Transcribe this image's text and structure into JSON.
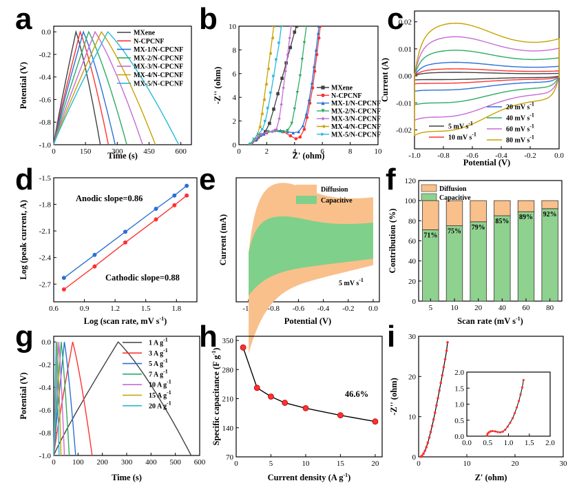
{
  "panels": [
    "a",
    "b",
    "c",
    "d",
    "e",
    "f",
    "g",
    "h",
    "i"
  ],
  "chart_data": [
    {
      "id": "a",
      "type": "line",
      "xlabel": "Time (s)",
      "ylabel": "Potential (V)",
      "xlim": [
        0,
        650
      ],
      "ylim": [
        -1.0,
        0.05
      ],
      "xticks": [
        0,
        150,
        300,
        450,
        600
      ],
      "yticks": [
        0.0,
        -0.2,
        -0.4,
        -0.6,
        -0.8,
        -1.0
      ],
      "series": [
        {
          "name": "MXene",
          "color": "#404040",
          "peak_t": 105,
          "end_t": 220
        },
        {
          "name": "N-CPCNF",
          "color": "#ff3030",
          "peak_t": 125,
          "end_t": 258
        },
        {
          "name": "MX-1/N-CPCNF",
          "color": "#2a6fd6",
          "peak_t": 140,
          "end_t": 290
        },
        {
          "name": "MX-2/N-CPCNF",
          "color": "#2cab62",
          "peak_t": 165,
          "end_t": 345
        },
        {
          "name": "MX-3/N-CPCNF",
          "color": "#c66ad6",
          "peak_t": 195,
          "end_t": 420
        },
        {
          "name": "MX-4/N-CPCNF",
          "color": "#c8a000",
          "peak_t": 225,
          "end_t": 480
        },
        {
          "name": "MX-5/N-CPCNF",
          "color": "#29b8d8",
          "peak_t": 255,
          "end_t": 590
        }
      ]
    },
    {
      "id": "b",
      "type": "scatter",
      "xlabel": "Z' (ohm)",
      "ylabel": "-Z'' (ohm)",
      "xlim": [
        0,
        10
      ],
      "ylim": [
        0,
        10
      ],
      "xticks": [
        0,
        2,
        4,
        6,
        8,
        10
      ],
      "yticks": [
        0,
        2,
        4,
        6,
        8,
        10
      ],
      "series": [
        {
          "name": "MXene",
          "color": "#404040",
          "marker": "square",
          "points": [
            [
              0.9,
              0.05
            ],
            [
              1.2,
              0.4
            ],
            [
              1.55,
              0.8
            ],
            [
              1.9,
              1.1
            ],
            [
              2.2,
              1.8
            ],
            [
              2.5,
              3.0
            ],
            [
              2.8,
              4.3
            ],
            [
              3.1,
              5.6
            ],
            [
              3.4,
              6.9
            ],
            [
              3.7,
              8.2
            ],
            [
              4.0,
              9.5
            ],
            [
              4.15,
              10
            ]
          ]
        },
        {
          "name": "N-CPCNF",
          "color": "#ff3030",
          "marker": "circle",
          "points": [
            [
              0.9,
              0.05
            ],
            [
              1.4,
              0.6
            ],
            [
              2.0,
              1.0
            ],
            [
              2.6,
              1.2
            ],
            [
              3.2,
              1.1
            ],
            [
              3.7,
              0.75
            ],
            [
              4.1,
              0.5
            ],
            [
              4.4,
              0.65
            ],
            [
              4.7,
              1.3
            ],
            [
              4.9,
              2.3
            ],
            [
              5.1,
              3.5
            ],
            [
              5.3,
              4.8
            ],
            [
              5.45,
              6.2
            ],
            [
              5.6,
              7.6
            ],
            [
              5.75,
              9.0
            ],
            [
              5.85,
              10
            ]
          ]
        },
        {
          "name": "MX-1/N-CPCNF",
          "color": "#2a6fd6",
          "marker": "triangle-up",
          "points": [
            [
              0.9,
              0.05
            ],
            [
              1.3,
              0.5
            ],
            [
              1.8,
              0.9
            ],
            [
              2.4,
              1.15
            ],
            [
              3.0,
              1.2
            ],
            [
              3.5,
              1.1
            ],
            [
              3.9,
              1.0
            ],
            [
              4.3,
              1.1
            ],
            [
              4.6,
              1.6
            ],
            [
              4.85,
              2.6
            ],
            [
              5.05,
              3.8
            ],
            [
              5.25,
              5.2
            ],
            [
              5.4,
              6.6
            ],
            [
              5.55,
              8.0
            ],
            [
              5.7,
              9.4
            ],
            [
              5.75,
              10
            ]
          ]
        },
        {
          "name": "MX-2/N-CPCNF",
          "color": "#2cab62",
          "marker": "triangle-down",
          "points": [
            [
              0.85,
              0.05
            ],
            [
              1.2,
              0.45
            ],
            [
              1.6,
              0.85
            ],
            [
              2.1,
              1.1
            ],
            [
              2.6,
              1.15
            ],
            [
              3.1,
              1.05
            ],
            [
              3.5,
              1.2
            ],
            [
              3.8,
              1.8
            ],
            [
              4.0,
              3.0
            ],
            [
              4.2,
              4.4
            ],
            [
              4.4,
              5.8
            ],
            [
              4.55,
              7.2
            ],
            [
              4.7,
              8.6
            ],
            [
              4.85,
              10
            ]
          ]
        },
        {
          "name": "MX-3/N-CPCNF",
          "color": "#c66ad6",
          "marker": "diamond",
          "points": [
            [
              0.85,
              0.05
            ],
            [
              1.2,
              0.5
            ],
            [
              1.6,
              0.9
            ],
            [
              2.0,
              1.05
            ],
            [
              2.4,
              1.1
            ],
            [
              2.7,
              1.3
            ],
            [
              2.9,
              2.2
            ],
            [
              3.05,
              3.4
            ],
            [
              3.2,
              4.8
            ],
            [
              3.35,
              6.2
            ],
            [
              3.5,
              7.6
            ],
            [
              3.65,
              9.0
            ],
            [
              3.75,
              10
            ]
          ]
        },
        {
          "name": "MX-4/N-CPCNF",
          "color": "#c8a000",
          "marker": "triangle-left",
          "points": [
            [
              0.8,
              0.05
            ],
            [
              1.05,
              0.4
            ],
            [
              1.3,
              0.8
            ],
            [
              1.5,
              1.5
            ],
            [
              1.65,
              2.6
            ],
            [
              1.8,
              3.8
            ],
            [
              1.95,
              5.1
            ],
            [
              2.1,
              6.4
            ],
            [
              2.25,
              7.7
            ],
            [
              2.4,
              9.0
            ],
            [
              2.5,
              10
            ]
          ]
        },
        {
          "name": "MX-5/N-CPCNF",
          "color": "#29b8d8",
          "marker": "triangle-right",
          "points": [
            [
              0.8,
              0.05
            ],
            [
              1.1,
              0.5
            ],
            [
              1.4,
              0.9
            ],
            [
              1.7,
              1.3
            ],
            [
              1.9,
              2.0
            ],
            [
              2.1,
              3.1
            ],
            [
              2.3,
              4.4
            ],
            [
              2.5,
              5.8
            ],
            [
              2.7,
              7.2
            ],
            [
              2.9,
              8.6
            ],
            [
              3.05,
              10
            ]
          ]
        }
      ]
    },
    {
      "id": "c",
      "type": "line",
      "xlabel": "Potential (V)",
      "ylabel": "Current (A)",
      "xlim": [
        -1.0,
        0.0
      ],
      "ylim": [
        -0.027,
        0.024
      ],
      "xticks": [
        -1.0,
        -0.8,
        -0.6,
        -0.4,
        -0.2,
        0.0
      ],
      "yticks": [
        0.02,
        0.01,
        0.0,
        -0.01,
        -0.02
      ],
      "series": [
        {
          "name": "5  mV s",
          "superscript": "-1",
          "color": "#404040",
          "amplitude": 0.0013
        },
        {
          "name": "10 mV s",
          "superscript": "-1",
          "color": "#ff3030",
          "amplitude": 0.0026
        },
        {
          "name": "20 mV s",
          "superscript": "-1",
          "color": "#2a6fd6",
          "amplitude": 0.005
        },
        {
          "name": "40 mV s",
          "superscript": "-1",
          "color": "#2cab62",
          "amplitude": 0.0095
        },
        {
          "name": "60 mV s",
          "superscript": "-1",
          "color": "#c66ad6",
          "amplitude": 0.0145
        },
        {
          "name": "80 mV s",
          "superscript": "-1",
          "color": "#c8a000",
          "amplitude": 0.0195
        }
      ]
    },
    {
      "id": "d",
      "type": "scatter",
      "xlabel": "Log (scan rate, mV s",
      "xlabel_sup": "-1",
      "xlabel_end": ")",
      "ylabel": "Log (peak current, A)",
      "xlim": [
        0.6,
        2.0
      ],
      "ylim": [
        -2.9,
        -1.5
      ],
      "xticks": [
        0.6,
        0.9,
        1.2,
        1.5,
        1.8
      ],
      "yticks": [
        -1.5,
        -1.8,
        -2.1,
        -2.4,
        -2.7
      ],
      "annotations": [
        "Anodic slope=0.86",
        "Cathodic slope=0.88"
      ],
      "series": [
        {
          "name": "Anodic",
          "color": "#2a6fd6",
          "x": [
            0.7,
            1.0,
            1.3,
            1.6,
            1.78,
            1.9
          ],
          "y": [
            -2.63,
            -2.37,
            -2.11,
            -1.85,
            -1.7,
            -1.59
          ]
        },
        {
          "name": "Cathodic",
          "color": "#ff3030",
          "x": [
            0.7,
            1.0,
            1.3,
            1.6,
            1.78,
            1.9
          ],
          "y": [
            -2.76,
            -2.5,
            -2.23,
            -1.97,
            -1.81,
            -1.7
          ]
        }
      ]
    },
    {
      "id": "e",
      "type": "area",
      "xlabel": "Potential (V)",
      "ylabel": "Current (mA)",
      "xlim": [
        -1.1,
        0.05
      ],
      "xticks": [
        -1.0,
        -0.8,
        -0.6,
        -0.4,
        -0.2,
        0.0
      ],
      "legend": [
        "Diffusion",
        "Capacitive"
      ],
      "colors": {
        "Diffusion": "#f9c08c",
        "Capacitive": "#7fd08a"
      },
      "annotation": "5 mV s",
      "annotation_sup": "-1"
    },
    {
      "id": "f",
      "type": "bar",
      "xlabel": "Scan rate (mV s",
      "xlabel_sup": "-1",
      "xlabel_end": ")",
      "ylabel": "Contribution (%)",
      "ylim": [
        0,
        120
      ],
      "yticks": [
        0,
        20,
        40,
        60,
        80,
        100,
        120
      ],
      "categories": [
        "5",
        "10",
        "20",
        "40",
        "60",
        "80"
      ],
      "series": [
        {
          "name": "Capacitive",
          "color": "#8fd18f",
          "values": [
            71,
            75,
            79,
            85,
            89,
            92
          ]
        },
        {
          "name": "Diffusion",
          "color": "#f9c08c",
          "values": [
            29,
            25,
            21,
            15,
            11,
            8
          ]
        }
      ],
      "labels": [
        "71%",
        "75%",
        "79%",
        "85%",
        "89%",
        "92%"
      ]
    },
    {
      "id": "g",
      "type": "line",
      "xlabel": "Time (s)",
      "ylabel": "Potential (V)",
      "xlim": [
        0,
        600
      ],
      "ylim": [
        -1.0,
        0.05
      ],
      "xticks": [
        0,
        100,
        200,
        300,
        400,
        500,
        600
      ],
      "yticks": [
        0.0,
        -0.2,
        -0.4,
        -0.6,
        -0.8,
        -1.0
      ],
      "series": [
        {
          "name": "1  A g",
          "superscript": "-1",
          "color": "#404040",
          "peak_t": 265,
          "end_t": 565
        },
        {
          "name": "3  A g",
          "superscript": "-1",
          "color": "#ff3030",
          "peak_t": 78,
          "end_t": 158
        },
        {
          "name": "5  A g",
          "superscript": "-1",
          "color": "#2a6fd6",
          "peak_t": 44,
          "end_t": 90
        },
        {
          "name": "7  A g",
          "superscript": "-1",
          "color": "#2cab62",
          "peak_t": 31,
          "end_t": 64
        },
        {
          "name": "10  A g",
          "superscript": "-1",
          "color": "#c66ad6",
          "peak_t": 21,
          "end_t": 44
        },
        {
          "name": "15  A g",
          "superscript": "-1",
          "color": "#c8a000",
          "peak_t": 14,
          "end_t": 30
        },
        {
          "name": "20  A g",
          "superscript": "-1",
          "color": "#29b8d8",
          "peak_t": 10,
          "end_t": 22
        }
      ]
    },
    {
      "id": "h",
      "type": "line",
      "xlabel": "Current density (A g",
      "xlabel_sup": "-1",
      "xlabel_end": ")",
      "ylabel": "Specific capacitance (F g",
      "ylabel_sup": "-1",
      "ylabel_end": ")",
      "xlim": [
        0,
        21
      ],
      "ylim": [
        70,
        360
      ],
      "xticks": [
        0,
        5,
        10,
        15,
        20
      ],
      "yticks": [
        70,
        140,
        210,
        280,
        350
      ],
      "x": [
        1,
        3,
        5,
        7,
        10,
        15,
        20
      ],
      "y": [
        333,
        236,
        215,
        200,
        187,
        170,
        155
      ],
      "annotation": "46.6%"
    },
    {
      "id": "i",
      "type": "scatter",
      "xlabel": "Z' (ohm)",
      "ylabel": "-Z'' (ohm)",
      "xlim": [
        0,
        30
      ],
      "ylim": [
        0,
        30
      ],
      "xticks": [
        0,
        10,
        20,
        30
      ],
      "yticks": [
        0,
        10,
        20,
        30
      ],
      "color": "#ff3030",
      "points": [
        [
          0.5,
          0.05
        ],
        [
          0.7,
          0.3
        ],
        [
          1.0,
          0.8
        ],
        [
          1.3,
          1.5
        ],
        [
          1.6,
          2.4
        ],
        [
          1.9,
          3.5
        ],
        [
          2.2,
          4.8
        ],
        [
          2.5,
          6.2
        ],
        [
          2.8,
          7.7
        ],
        [
          3.1,
          9.3
        ],
        [
          3.4,
          11
        ],
        [
          3.7,
          12.8
        ],
        [
          4.0,
          14.6
        ],
        [
          4.3,
          16.5
        ],
        [
          4.6,
          18.4
        ],
        [
          4.9,
          20.3
        ],
        [
          5.2,
          22.3
        ],
        [
          5.5,
          24.3
        ],
        [
          5.8,
          26.4
        ],
        [
          6.0,
          28.5
        ]
      ],
      "inset": {
        "xlim": [
          0,
          2.0
        ],
        "ylim": [
          0,
          2.0
        ],
        "xticks": [
          0.0,
          0.5,
          1.0,
          1.5,
          2.0
        ],
        "yticks": [
          0.0,
          0.5,
          1.0,
          1.5,
          2.0
        ],
        "points": [
          [
            0.48,
            0.02
          ],
          [
            0.5,
            0.08
          ],
          [
            0.53,
            0.12
          ],
          [
            0.57,
            0.15
          ],
          [
            0.62,
            0.16
          ],
          [
            0.68,
            0.15
          ],
          [
            0.74,
            0.13
          ],
          [
            0.8,
            0.12
          ],
          [
            0.86,
            0.14
          ],
          [
            0.92,
            0.2
          ],
          [
            0.98,
            0.3
          ],
          [
            1.04,
            0.42
          ],
          [
            1.1,
            0.56
          ],
          [
            1.15,
            0.72
          ],
          [
            1.2,
            0.9
          ],
          [
            1.25,
            1.1
          ],
          [
            1.29,
            1.3
          ],
          [
            1.33,
            1.52
          ],
          [
            1.36,
            1.75
          ]
        ]
      }
    }
  ]
}
